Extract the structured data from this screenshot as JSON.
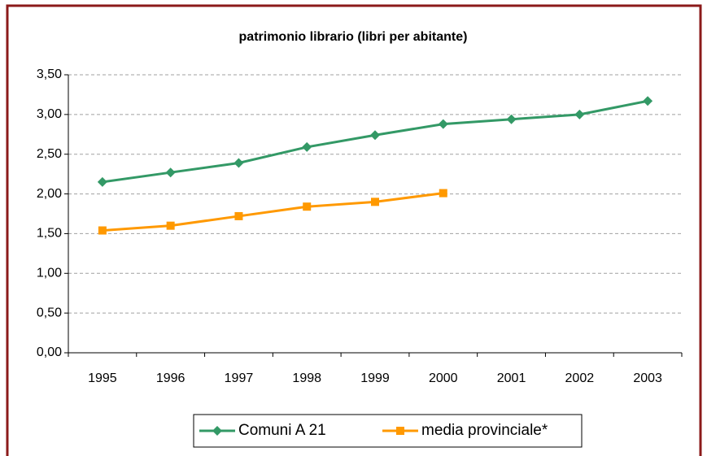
{
  "chart_data": {
    "type": "line",
    "title": "patrimonio librario (libri per abitante)",
    "categories": [
      "1995",
      "1996",
      "1997",
      "1998",
      "1999",
      "2000",
      "2001",
      "2002",
      "2003"
    ],
    "series": [
      {
        "name": "Comuni A 21",
        "color": "#339966",
        "marker": "diamond",
        "values": [
          2.15,
          2.27,
          2.39,
          2.59,
          2.74,
          2.88,
          2.94,
          3.0,
          3.17
        ]
      },
      {
        "name": "media provinciale*",
        "color": "#ff9900",
        "marker": "square",
        "values": [
          1.54,
          1.6,
          1.72,
          1.84,
          1.9,
          2.01,
          null,
          null,
          null
        ]
      }
    ],
    "ylim": [
      0,
      3.5
    ],
    "yticks": [
      {
        "value": 0,
        "label": "0,00"
      },
      {
        "value": 0.5,
        "label": "0,50"
      },
      {
        "value": 1,
        "label": "1,00"
      },
      {
        "value": 1.5,
        "label": "1,50"
      },
      {
        "value": 2,
        "label": "2,00"
      },
      {
        "value": 2.5,
        "label": "2,50"
      },
      {
        "value": 3,
        "label": "3,00"
      },
      {
        "value": 3.5,
        "label": "3,50"
      }
    ],
    "grid": true,
    "legend": "bottom"
  }
}
